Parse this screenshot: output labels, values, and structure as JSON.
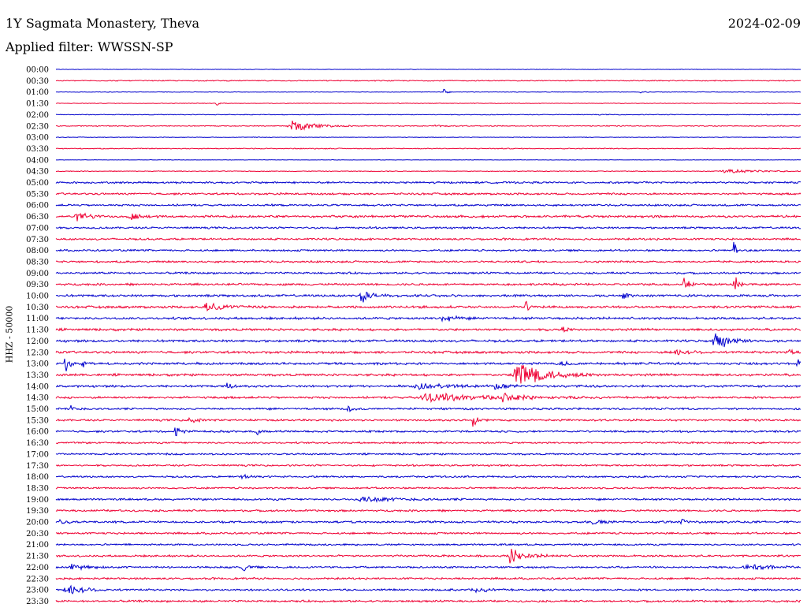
{
  "header": {
    "station": "1Y Sagmata Monastery, Theva",
    "date": "2024-02-09",
    "filter": "Applied filter: WWSSN-SP"
  },
  "chart_data": {
    "type": "line",
    "title": "1Y Sagmata Monastery, Theva",
    "date": "2024-02-09",
    "subtitle": "Applied filter: WWSSN-SP",
    "ylabel": "HHZ - 50000",
    "xlabel": "",
    "row_labels": [
      "00:00",
      "00:30",
      "01:00",
      "01:30",
      "02:00",
      "02:30",
      "03:00",
      "03:30",
      "04:00",
      "04:30",
      "05:00",
      "05:30",
      "06:00",
      "06:30",
      "07:00",
      "07:30",
      "08:00",
      "08:30",
      "09:00",
      "09:30",
      "10:00",
      "10:30",
      "11:00",
      "11:30",
      "12:00",
      "12:30",
      "13:00",
      "13:30",
      "14:00",
      "14:30",
      "15:00",
      "15:30",
      "16:00",
      "16:30",
      "17:00",
      "17:30",
      "18:00",
      "18:30",
      "19:00",
      "19:30",
      "20:00",
      "20:30",
      "21:00",
      "21:30",
      "22:00",
      "22:30",
      "23:00",
      "23:30"
    ],
    "colors": [
      "#0000cc",
      "#ee0033"
    ],
    "noise_levels": [
      0.25,
      0.5,
      0.3,
      0.3,
      0.4,
      0.5,
      0.3,
      0.5,
      0.2,
      0.4,
      1.0,
      1.0,
      1.0,
      1.2,
      1.0,
      1.0,
      1.0,
      1.0,
      1.0,
      1.1,
      1.2,
      1.2,
      1.2,
      1.2,
      1.2,
      1.2,
      1.2,
      1.2,
      1.1,
      1.1,
      1.0,
      1.0,
      1.0,
      0.9,
      0.9,
      0.9,
      0.9,
      0.9,
      1.0,
      1.0,
      1.1,
      1.0,
      0.9,
      1.0,
      1.0,
      1.0,
      1.0,
      1.0
    ],
    "events": [
      {
        "row": 2,
        "pos": 0.52,
        "amp": 5,
        "dur": 0.005
      },
      {
        "row": 2,
        "pos": 0.785,
        "amp": 3,
        "dur": 0.004
      },
      {
        "row": 3,
        "pos": 0.215,
        "amp": 4,
        "dur": 0.004
      },
      {
        "row": 5,
        "pos": 0.315,
        "amp": 10,
        "dur": 0.025
      },
      {
        "row": 5,
        "pos": 0.51,
        "amp": 2,
        "dur": 0.01
      },
      {
        "row": 9,
        "pos": 0.9,
        "amp": 3,
        "dur": 0.04
      },
      {
        "row": 13,
        "pos": 0.028,
        "amp": 6,
        "dur": 0.015
      },
      {
        "row": 13,
        "pos": 0.1,
        "amp": 6,
        "dur": 0.012
      },
      {
        "row": 16,
        "pos": 0.91,
        "amp": 12,
        "dur": 0.004
      },
      {
        "row": 19,
        "pos": 0.843,
        "amp": 24,
        "dur": 0.004
      },
      {
        "row": 19,
        "pos": 0.91,
        "amp": 20,
        "dur": 0.004
      },
      {
        "row": 20,
        "pos": 0.41,
        "amp": 10,
        "dur": 0.012
      },
      {
        "row": 20,
        "pos": 0.76,
        "amp": 12,
        "dur": 0.004
      },
      {
        "row": 21,
        "pos": 0.2,
        "amp": 5,
        "dur": 0.03
      },
      {
        "row": 21,
        "pos": 0.63,
        "amp": 9,
        "dur": 0.006
      },
      {
        "row": 22,
        "pos": 0.52,
        "amp": 6,
        "dur": 0.012
      },
      {
        "row": 23,
        "pos": 0.68,
        "amp": 5,
        "dur": 0.005
      },
      {
        "row": 24,
        "pos": 0.885,
        "amp": 16,
        "dur": 0.015
      },
      {
        "row": 25,
        "pos": 0.83,
        "amp": 4,
        "dur": 0.02
      },
      {
        "row": 25,
        "pos": 0.985,
        "amp": 4,
        "dur": 0.006
      },
      {
        "row": 26,
        "pos": 0.012,
        "amp": 12,
        "dur": 0.006
      },
      {
        "row": 26,
        "pos": 0.035,
        "amp": 6,
        "dur": 0.004
      },
      {
        "row": 26,
        "pos": 0.68,
        "amp": 3,
        "dur": 0.01
      },
      {
        "row": 26,
        "pos": 0.995,
        "amp": 8,
        "dur": 0.004
      },
      {
        "row": 27,
        "pos": 0.62,
        "amp": 22,
        "dur": 0.03
      },
      {
        "row": 28,
        "pos": 0.23,
        "amp": 8,
        "dur": 0.004
      },
      {
        "row": 28,
        "pos": 0.48,
        "amp": 4,
        "dur": 0.04
      },
      {
        "row": 28,
        "pos": 0.59,
        "amp": 8,
        "dur": 0.01
      },
      {
        "row": 29,
        "pos": 0.5,
        "amp": 6,
        "dur": 0.06
      },
      {
        "row": 29,
        "pos": 0.6,
        "amp": 6,
        "dur": 0.02
      },
      {
        "row": 30,
        "pos": 0.02,
        "amp": 5,
        "dur": 0.006
      },
      {
        "row": 30,
        "pos": 0.39,
        "amp": 5,
        "dur": 0.006
      },
      {
        "row": 31,
        "pos": 0.18,
        "amp": 9,
        "dur": 0.006
      },
      {
        "row": 31,
        "pos": 0.56,
        "amp": 10,
        "dur": 0.006
      },
      {
        "row": 32,
        "pos": 0.16,
        "amp": 8,
        "dur": 0.006
      },
      {
        "row": 32,
        "pos": 0.27,
        "amp": 5,
        "dur": 0.004
      },
      {
        "row": 36,
        "pos": 0.25,
        "amp": 3,
        "dur": 0.01
      },
      {
        "row": 38,
        "pos": 0.41,
        "amp": 4,
        "dur": 0.04
      },
      {
        "row": 40,
        "pos": 0.005,
        "amp": 6,
        "dur": 0.006
      },
      {
        "row": 40,
        "pos": 0.72,
        "amp": 3,
        "dur": 0.01
      },
      {
        "row": 40,
        "pos": 0.84,
        "amp": 9,
        "dur": 0.005
      },
      {
        "row": 43,
        "pos": 0.61,
        "amp": 10,
        "dur": 0.02
      },
      {
        "row": 44,
        "pos": 0.02,
        "amp": 5,
        "dur": 0.015
      },
      {
        "row": 44,
        "pos": 0.25,
        "amp": 7,
        "dur": 0.006
      },
      {
        "row": 44,
        "pos": 0.93,
        "amp": 4,
        "dur": 0.03
      },
      {
        "row": 46,
        "pos": 0.015,
        "amp": 9,
        "dur": 0.02
      },
      {
        "row": 46,
        "pos": 0.56,
        "amp": 3,
        "dur": 0.02
      }
    ]
  }
}
